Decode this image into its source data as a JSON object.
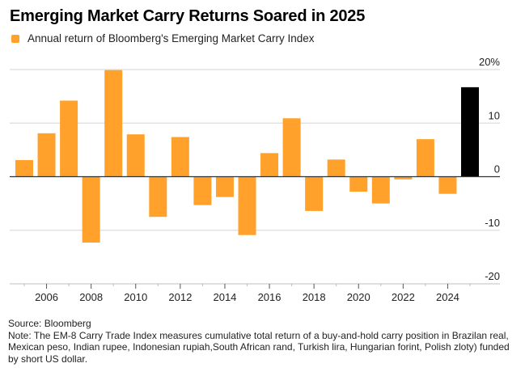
{
  "chart_data": {
    "type": "bar",
    "title": "Emerging Market Carry Returns Soared in 2025",
    "legend": [
      {
        "label": "Annual return of Bloomberg's Emerging Market Carry Index",
        "color": "#FFA12A"
      }
    ],
    "legend_position": "top-left",
    "xlabel": "",
    "ylabel": "",
    "y_unit": "%",
    "ylim": [
      -20,
      20
    ],
    "yticks": [
      20,
      10,
      0,
      -10,
      -20
    ],
    "ytick_labels": [
      "20%",
      "10",
      "0",
      "-10",
      "-20"
    ],
    "y_axis_side": "right",
    "grid": true,
    "categories": [
      "2005",
      "2006",
      "2007",
      "2008",
      "2009",
      "2010",
      "2011",
      "2012",
      "2013",
      "2014",
      "2015",
      "2016",
      "2017",
      "2018",
      "2019",
      "2020",
      "2021",
      "2022",
      "2023",
      "2024",
      "2025"
    ],
    "xtick_labels": [
      "2006",
      "2008",
      "2010",
      "2012",
      "2014",
      "2016",
      "2018",
      "2020",
      "2022",
      "2024"
    ],
    "series": [
      {
        "name": "Annual return of Bloomberg's Emerging Market Carry Index",
        "values": [
          3.1,
          8.1,
          14.2,
          -12.3,
          19.9,
          7.9,
          -7.5,
          7.4,
          -5.3,
          -3.8,
          -10.9,
          4.4,
          10.9,
          -6.4,
          3.2,
          -2.8,
          -5.0,
          -0.5,
          7.0,
          -3.2,
          16.7
        ]
      }
    ],
    "highlight": {
      "category": "2025",
      "color": "#000000"
    },
    "colors": {
      "bar": "#FFA12A",
      "highlight": "#000000",
      "grid": "#dddddd",
      "zero_line": "#333333"
    }
  },
  "footer": {
    "source": "Source: Bloomberg",
    "note": "Note: The EM-8 Carry Trade Index measures cumulative total return of a buy-and-hold carry position in Brazilan real, Mexican peso, Indian rupee, Indonesian rupiah,South African rand, Turkish lira, Hungarian forint, Polish zloty) funded by short US dollar."
  }
}
